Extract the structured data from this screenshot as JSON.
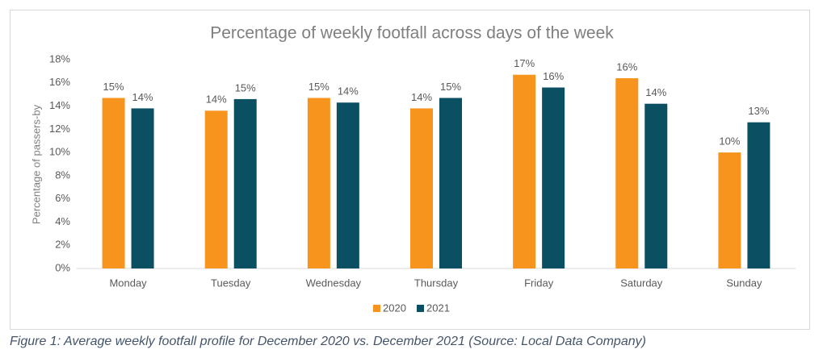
{
  "chart_data": {
    "type": "bar",
    "title": "Percentage of weekly footfall across days of the week",
    "y_label": "Percentage of passers-by",
    "caption": "Figure 1: Average weekly footfall profile for December 2020 vs. December 2021 (Source: Local Data Company)",
    "categories": [
      "Monday",
      "Tuesday",
      "Wednesday",
      "Thursday",
      "Friday",
      "Saturday",
      "Sunday"
    ],
    "series": [
      {
        "name": "2020",
        "color": "#f7941d",
        "values": [
          14.7,
          13.6,
          14.7,
          13.8,
          16.7,
          16.4,
          10.0
        ],
        "value_labels": [
          "15%",
          "14%",
          "15%",
          "14%",
          "17%",
          "16%",
          "10%"
        ]
      },
      {
        "name": "2021",
        "color": "#0b4f63",
        "values": [
          13.8,
          14.6,
          14.3,
          14.7,
          15.6,
          14.2,
          12.6
        ],
        "value_labels": [
          "14%",
          "15%",
          "14%",
          "15%",
          "16%",
          "14%",
          "13%"
        ]
      }
    ],
    "ylim": [
      0,
      18
    ],
    "yticks": [
      {
        "value": 0,
        "label": "0%"
      },
      {
        "value": 2,
        "label": "2%"
      },
      {
        "value": 4,
        "label": "4%"
      },
      {
        "value": 6,
        "label": "6%"
      },
      {
        "value": 8,
        "label": "8%"
      },
      {
        "value": 10,
        "label": "10%"
      },
      {
        "value": 12,
        "label": "12%"
      },
      {
        "value": 14,
        "label": "14%"
      },
      {
        "value": 16,
        "label": "16%"
      },
      {
        "value": 18,
        "label": "18%"
      }
    ],
    "legend": "bottom"
  }
}
